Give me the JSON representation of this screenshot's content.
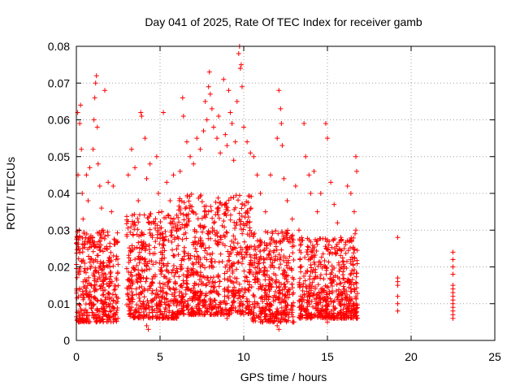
{
  "chart_data": {
    "type": "scatter",
    "title": "Day 041 of 2025, Rate Of TEC Index for receiver gamb",
    "xlabel": "GPS time / hours",
    "ylabel": "ROTI / TECUs",
    "xlim": [
      0,
      25
    ],
    "ylim": [
      0,
      0.08
    ],
    "xticks": [
      0,
      5,
      10,
      15,
      20,
      25
    ],
    "xtick_labels": [
      "0",
      "5",
      "10",
      "15",
      "20",
      "25"
    ],
    "yticks": [
      0,
      0.01,
      0.02,
      0.03,
      0.04,
      0.05,
      0.06,
      0.07,
      0.08
    ],
    "ytick_labels": [
      "0",
      "0.01",
      "0.02",
      "0.03",
      "0.04",
      "0.05",
      "0.06",
      "0.07",
      "0.08"
    ],
    "grid": true,
    "marker": "plus",
    "point_color": "#ff0000",
    "series": [
      {
        "points": [
          [
            0.05,
            0.028
          ],
          [
            0.08,
            0.062
          ],
          [
            0.1,
            0.045
          ],
          [
            0.15,
            0.018
          ],
          [
            0.2,
            0.059
          ],
          [
            0.25,
            0.064
          ],
          [
            0.3,
            0.052
          ],
          [
            0.35,
            0.04
          ],
          [
            0.4,
            0.033
          ],
          [
            0.45,
            0.026
          ],
          [
            0.5,
            0.021
          ],
          [
            0.55,
            0.016
          ],
          [
            0.6,
            0.045
          ],
          [
            0.7,
            0.038
          ],
          [
            0.8,
            0.047
          ],
          [
            0.9,
            0.012
          ],
          [
            1.0,
            0.052
          ],
          [
            1.05,
            0.06
          ],
          [
            1.1,
            0.066
          ],
          [
            1.15,
            0.07
          ],
          [
            1.2,
            0.072
          ],
          [
            1.25,
            0.058
          ],
          [
            1.3,
            0.048
          ],
          [
            1.4,
            0.042
          ],
          [
            1.5,
            0.036
          ],
          [
            1.6,
            0.03
          ],
          [
            1.7,
            0.068
          ],
          [
            1.8,
            0.025
          ],
          [
            1.9,
            0.043
          ],
          [
            2.0,
            0.02
          ],
          [
            2.1,
            0.035
          ],
          [
            2.2,
            0.042
          ],
          [
            2.3,
            0.015
          ],
          [
            0.3,
            0.008
          ],
          [
            0.6,
            0.006
          ],
          [
            1.2,
            0.005
          ],
          [
            1.7,
            0.007
          ],
          [
            2.2,
            0.009
          ],
          [
            3.1,
            0.045
          ],
          [
            3.3,
            0.052
          ],
          [
            3.5,
            0.047
          ],
          [
            3.7,
            0.038
          ],
          [
            3.85,
            0.062
          ],
          [
            3.9,
            0.061
          ],
          [
            4.1,
            0.055
          ],
          [
            4.2,
            0.044
          ],
          [
            4.4,
            0.048
          ],
          [
            4.6,
            0.032
          ],
          [
            4.8,
            0.05
          ],
          [
            4.9,
            0.04
          ],
          [
            5.1,
            0.035
          ],
          [
            5.2,
            0.062
          ],
          [
            5.4,
            0.043
          ],
          [
            5.6,
            0.038
          ],
          [
            5.8,
            0.045
          ],
          [
            6.0,
            0.03
          ],
          [
            6.2,
            0.046
          ],
          [
            6.35,
            0.066
          ],
          [
            6.4,
            0.061
          ],
          [
            6.6,
            0.054
          ],
          [
            6.8,
            0.05
          ],
          [
            7.0,
            0.048
          ],
          [
            7.2,
            0.055
          ],
          [
            7.4,
            0.052
          ],
          [
            7.6,
            0.057
          ],
          [
            7.7,
            0.065
          ],
          [
            7.8,
            0.06
          ],
          [
            7.9,
            0.069
          ],
          [
            7.95,
            0.073
          ],
          [
            8.0,
            0.067
          ],
          [
            8.1,
            0.063
          ],
          [
            8.2,
            0.058
          ],
          [
            8.4,
            0.055
          ],
          [
            8.5,
            0.061
          ],
          [
            8.6,
            0.051
          ],
          [
            8.8,
            0.071
          ],
          [
            8.9,
            0.056
          ],
          [
            9.0,
            0.053
          ],
          [
            9.1,
            0.068
          ],
          [
            9.2,
            0.062
          ],
          [
            9.3,
            0.059
          ],
          [
            9.4,
            0.049
          ],
          [
            9.5,
            0.054
          ],
          [
            9.6,
            0.065
          ],
          [
            9.7,
            0.078
          ],
          [
            9.75,
            0.08
          ],
          [
            9.8,
            0.074
          ],
          [
            9.85,
            0.075
          ],
          [
            9.9,
            0.069
          ],
          [
            10.0,
            0.058
          ],
          [
            10.2,
            0.054
          ],
          [
            10.4,
            0.051
          ],
          [
            10.6,
            0.05
          ],
          [
            10.8,
            0.045
          ],
          [
            11.0,
            0.04
          ],
          [
            11.3,
            0.035
          ],
          [
            11.6,
            0.045
          ],
          [
            12.0,
            0.055
          ],
          [
            12.1,
            0.068
          ],
          [
            12.2,
            0.063
          ],
          [
            12.25,
            0.059
          ],
          [
            12.3,
            0.053
          ],
          [
            12.4,
            0.044
          ],
          [
            12.6,
            0.038
          ],
          [
            12.9,
            0.033
          ],
          [
            13.1,
            0.042
          ],
          [
            13.3,
            0.03
          ],
          [
            13.6,
            0.059
          ],
          [
            13.7,
            0.05
          ],
          [
            13.9,
            0.045
          ],
          [
            14.0,
            0.04
          ],
          [
            14.2,
            0.046
          ],
          [
            14.4,
            0.035
          ],
          [
            14.6,
            0.04
          ],
          [
            14.9,
            0.059
          ],
          [
            15.0,
            0.055
          ],
          [
            15.2,
            0.043
          ],
          [
            15.4,
            0.037
          ],
          [
            15.6,
            0.032
          ],
          [
            15.8,
            0.028
          ],
          [
            16.0,
            0.025
          ],
          [
            16.2,
            0.042
          ],
          [
            16.4,
            0.04
          ],
          [
            16.6,
            0.035
          ],
          [
            16.7,
            0.05
          ],
          [
            16.75,
            0.046
          ],
          [
            16.7,
            0.03
          ],
          [
            16.65,
            0.029
          ],
          [
            16.6,
            0.014
          ],
          [
            16.7,
            0.012
          ],
          [
            16.6,
            0.01
          ],
          [
            4.2,
            0.004
          ],
          [
            4.3,
            0.003
          ],
          [
            5.0,
            0.007
          ],
          [
            6.0,
            0.006
          ],
          [
            7.0,
            0.007
          ],
          [
            9.0,
            0.006
          ],
          [
            10.5,
            0.006
          ],
          [
            12.0,
            0.004
          ],
          [
            12.1,
            0.003
          ],
          [
            13.0,
            0.005
          ],
          [
            14.0,
            0.006
          ],
          [
            15.0,
            0.005
          ],
          [
            16.0,
            0.007
          ],
          [
            19.2,
            0.028
          ],
          [
            19.2,
            0.017
          ],
          [
            19.2,
            0.016
          ],
          [
            19.2,
            0.015
          ],
          [
            19.2,
            0.012
          ],
          [
            19.2,
            0.01
          ],
          [
            19.2,
            0.008
          ],
          [
            22.5,
            0.024
          ],
          [
            22.5,
            0.022
          ],
          [
            22.5,
            0.02
          ],
          [
            22.5,
            0.018
          ],
          [
            22.5,
            0.015
          ],
          [
            22.5,
            0.014
          ],
          [
            22.5,
            0.013
          ],
          [
            22.5,
            0.012
          ],
          [
            22.5,
            0.011
          ],
          [
            22.5,
            0.01
          ],
          [
            22.5,
            0.009
          ],
          [
            22.5,
            0.008
          ],
          [
            22.5,
            0.007
          ],
          [
            22.5,
            0.006
          ]
        ]
      }
    ],
    "dense_segments": [
      {
        "x": [
          0.0,
          2.5
        ],
        "y": [
          0.005,
          0.03
        ]
      },
      {
        "x": [
          3.0,
          6.0
        ],
        "y": [
          0.006,
          0.035
        ]
      },
      {
        "x": [
          6.0,
          10.5
        ],
        "y": [
          0.007,
          0.04
        ]
      },
      {
        "x": [
          10.5,
          13.0
        ],
        "y": [
          0.005,
          0.03
        ]
      },
      {
        "x": [
          13.3,
          16.8
        ],
        "y": [
          0.006,
          0.028
        ]
      }
    ]
  }
}
